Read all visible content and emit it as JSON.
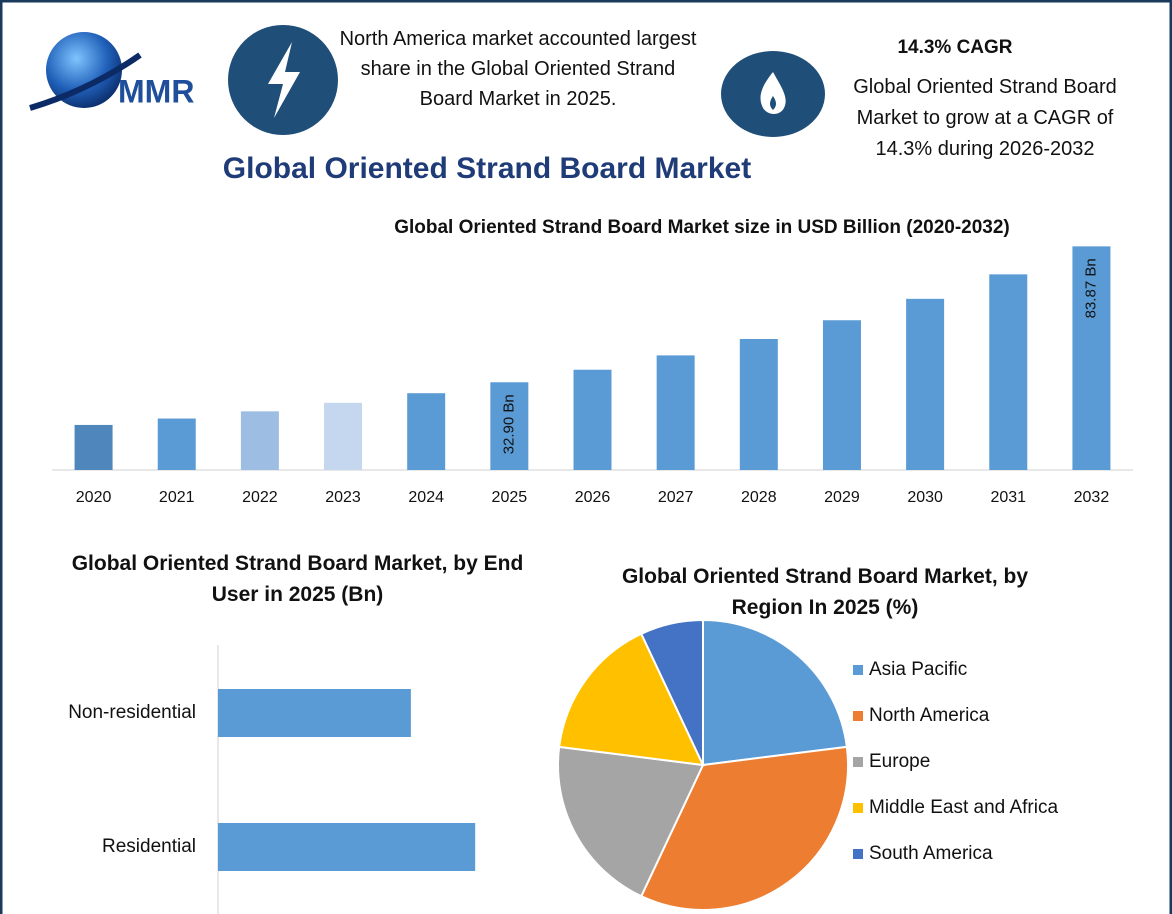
{
  "header": {
    "logo": "MMR",
    "note_share": "North America market accounted largest share in the Global Oriented Strand Board Market in 2025.",
    "cagr_heading": "14.3% CAGR",
    "note_cagr": "Global Oriented Strand Board Market to grow at a CAGR of 14.3% during 2026-2032",
    "title": "Global Oriented Strand Board Market"
  },
  "chart_data": [
    {
      "type": "bar",
      "title": "Global Oriented Strand Board Market size in USD Billion (2020-2032)",
      "categories": [
        "2020",
        "2021",
        "2022",
        "2023",
        "2024",
        "2025",
        "2026",
        "2027",
        "2028",
        "2029",
        "2030",
        "2031",
        "2032"
      ],
      "values": [
        16.9,
        19.3,
        22.0,
        25.2,
        28.8,
        32.9,
        37.6,
        42.98,
        49.13,
        56.16,
        64.19,
        73.37,
        83.87
      ],
      "value_labels": [
        null,
        null,
        null,
        null,
        null,
        "32.90 Bn",
        null,
        null,
        null,
        null,
        null,
        null,
        "83.87 Bn"
      ],
      "colors": [
        "#4f86bb",
        "#5b9bd5",
        "#9dbde3",
        "#c5d7ef",
        "#5b9bd5",
        "#5b9bd5",
        "#5b9bd5",
        "#5b9bd5",
        "#5b9bd5",
        "#5b9bd5",
        "#5b9bd5",
        "#5b9bd5",
        "#5b9bd5"
      ],
      "ylim": [
        0,
        90
      ]
    },
    {
      "type": "barh",
      "title": "Global Oriented Strand Board Market, by End User in 2025 (Bn)",
      "categories": [
        "Non-residential",
        "Residential"
      ],
      "values": [
        14.1,
        18.8
      ],
      "color": "#5b9bd5",
      "xlim": [
        0,
        25
      ]
    },
    {
      "type": "pie",
      "title": "Global Oriented Strand Board Market, by Region In 2025 (%)",
      "categories": [
        "Asia Pacific",
        "North America",
        "Europe",
        "Middle East and Africa",
        "South America"
      ],
      "values": [
        23,
        34,
        20,
        16,
        7
      ],
      "colors": [
        "#5b9bd5",
        "#ed7d31",
        "#a5a5a5",
        "#ffc000",
        "#4472c4"
      ],
      "legend": "right"
    }
  ]
}
